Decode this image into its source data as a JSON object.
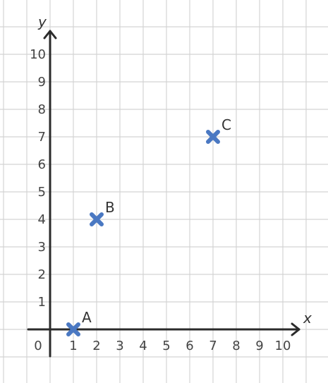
{
  "chart_data": {
    "type": "scatter",
    "title": "",
    "xlabel": "x",
    "ylabel": "y",
    "xlim": [
      -1,
      10.5
    ],
    "ylim": [
      -1,
      11
    ],
    "origin_label": "0",
    "x_ticks": [
      "1",
      "2",
      "3",
      "4",
      "5",
      "6",
      "7",
      "8",
      "9",
      "10"
    ],
    "y_ticks": [
      "1",
      "2",
      "3",
      "4",
      "5",
      "6",
      "7",
      "8",
      "9",
      "10"
    ],
    "points": [
      {
        "label": "A",
        "x": 1,
        "y": 0
      },
      {
        "label": "B",
        "x": 2,
        "y": 4
      },
      {
        "label": "C",
        "x": 7,
        "y": 7
      }
    ],
    "grid": true,
    "marker": "cross",
    "colors": {
      "marker": "#4a78c2",
      "axis": "#2b2b2b",
      "grid": "#d4d4d4"
    }
  }
}
